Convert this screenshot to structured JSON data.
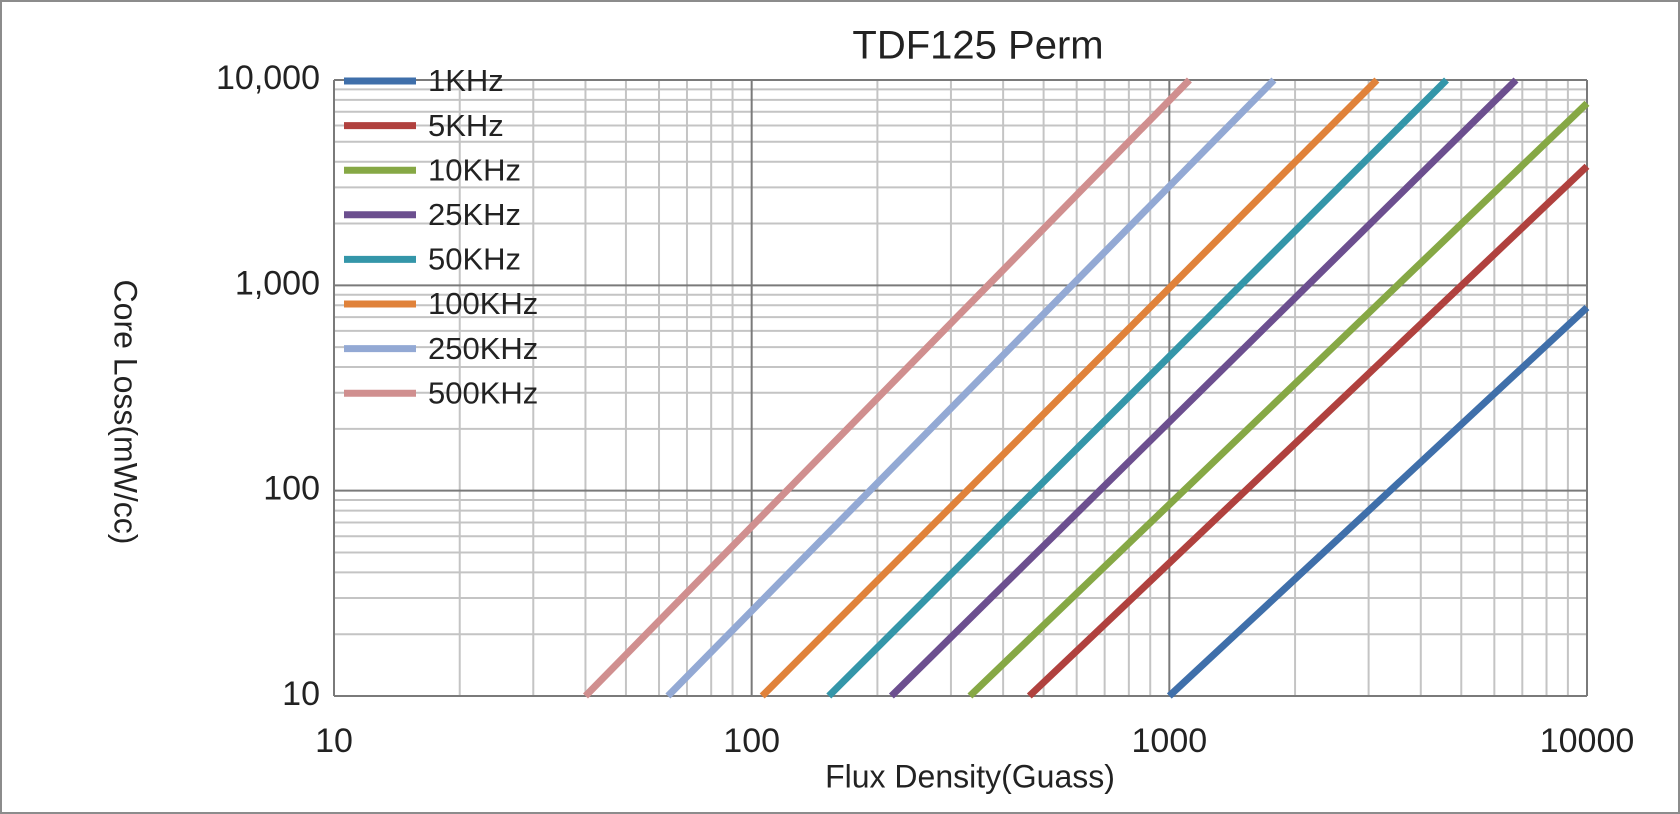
{
  "chart_data": {
    "type": "line",
    "title": "TDF125 Perm",
    "x_label": "Flux Density(Guass)",
    "y_label": "Core Loss(mW/cc)",
    "x_scale": "log",
    "y_scale": "log",
    "xlim": [
      10,
      10000
    ],
    "ylim": [
      10,
      10000
    ],
    "xticks": [
      10,
      100,
      1000,
      10000
    ],
    "yticks": [
      10,
      100,
      {
        "value": 1000,
        "label": "1,000"
      },
      {
        "value": 10000,
        "label": "10,000"
      }
    ],
    "grid": true,
    "minor_grid": true,
    "legend": "upper left",
    "series": [
      {
        "name": "1KHz",
        "color": "#3f6faa",
        "x": [
          1000,
          10000
        ],
        "values": [
          10,
          780
        ]
      },
      {
        "name": "5KHz",
        "color": "#b0413e",
        "x": [
          462,
          10000
        ],
        "values": [
          10,
          3800
        ]
      },
      {
        "name": "10KHz",
        "color": "#86a845",
        "x": [
          333,
          10000
        ],
        "values": [
          10,
          7700
        ]
      },
      {
        "name": "25KHz",
        "color": "#6c4f8f",
        "x": [
          216,
          6760
        ],
        "values": [
          10,
          10000
        ]
      },
      {
        "name": "50KHz",
        "color": "#3496a9",
        "x": [
          153,
          4610
        ],
        "values": [
          10,
          10000
        ]
      },
      {
        "name": "100KHz",
        "color": "#e0823a",
        "x": [
          106,
          3140
        ],
        "values": [
          10,
          10000
        ]
      },
      {
        "name": "250KHz",
        "color": "#93a9d4",
        "x": [
          63,
          1780
        ],
        "values": [
          10,
          10000
        ]
      },
      {
        "name": "500KHz",
        "color": "#d08f8f",
        "x": [
          40,
          1117
        ],
        "values": [
          10,
          10000
        ]
      }
    ]
  }
}
